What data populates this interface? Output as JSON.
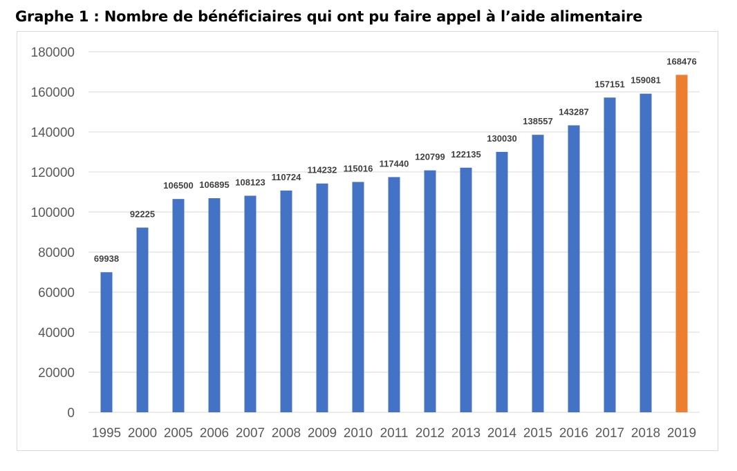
{
  "title": "Graphe 1 : Nombre de bénéficiaires qui ont pu faire appel à l’aide alimentaire",
  "chart_data": {
    "type": "bar",
    "title": "Graphe 1 : Nombre de bénéficiaires qui ont pu faire appel à l’aide alimentaire",
    "xlabel": "",
    "ylabel": "",
    "ylim": [
      0,
      180000
    ],
    "yticks": [
      0,
      20000,
      40000,
      60000,
      80000,
      100000,
      120000,
      140000,
      160000,
      180000
    ],
    "grid": true,
    "legend": "none",
    "categories": [
      "1995",
      "2000",
      "2005",
      "2006",
      "2007",
      "2008",
      "2009",
      "2010",
      "2011",
      "2012",
      "2013",
      "2014",
      "2015",
      "2016",
      "2017",
      "2018",
      "2019"
    ],
    "values": [
      69938,
      92225,
      106500,
      106895,
      108123,
      110724,
      114232,
      115016,
      117440,
      120799,
      122135,
      130030,
      138557,
      143287,
      157151,
      159081,
      168476
    ],
    "colors": {
      "bar": "#4472c4",
      "highlight_bar": "#ed7d31",
      "grid": "#d9d9d9",
      "tick_text": "#595959",
      "data_label": "#404040"
    },
    "highlight_category": "2019"
  }
}
